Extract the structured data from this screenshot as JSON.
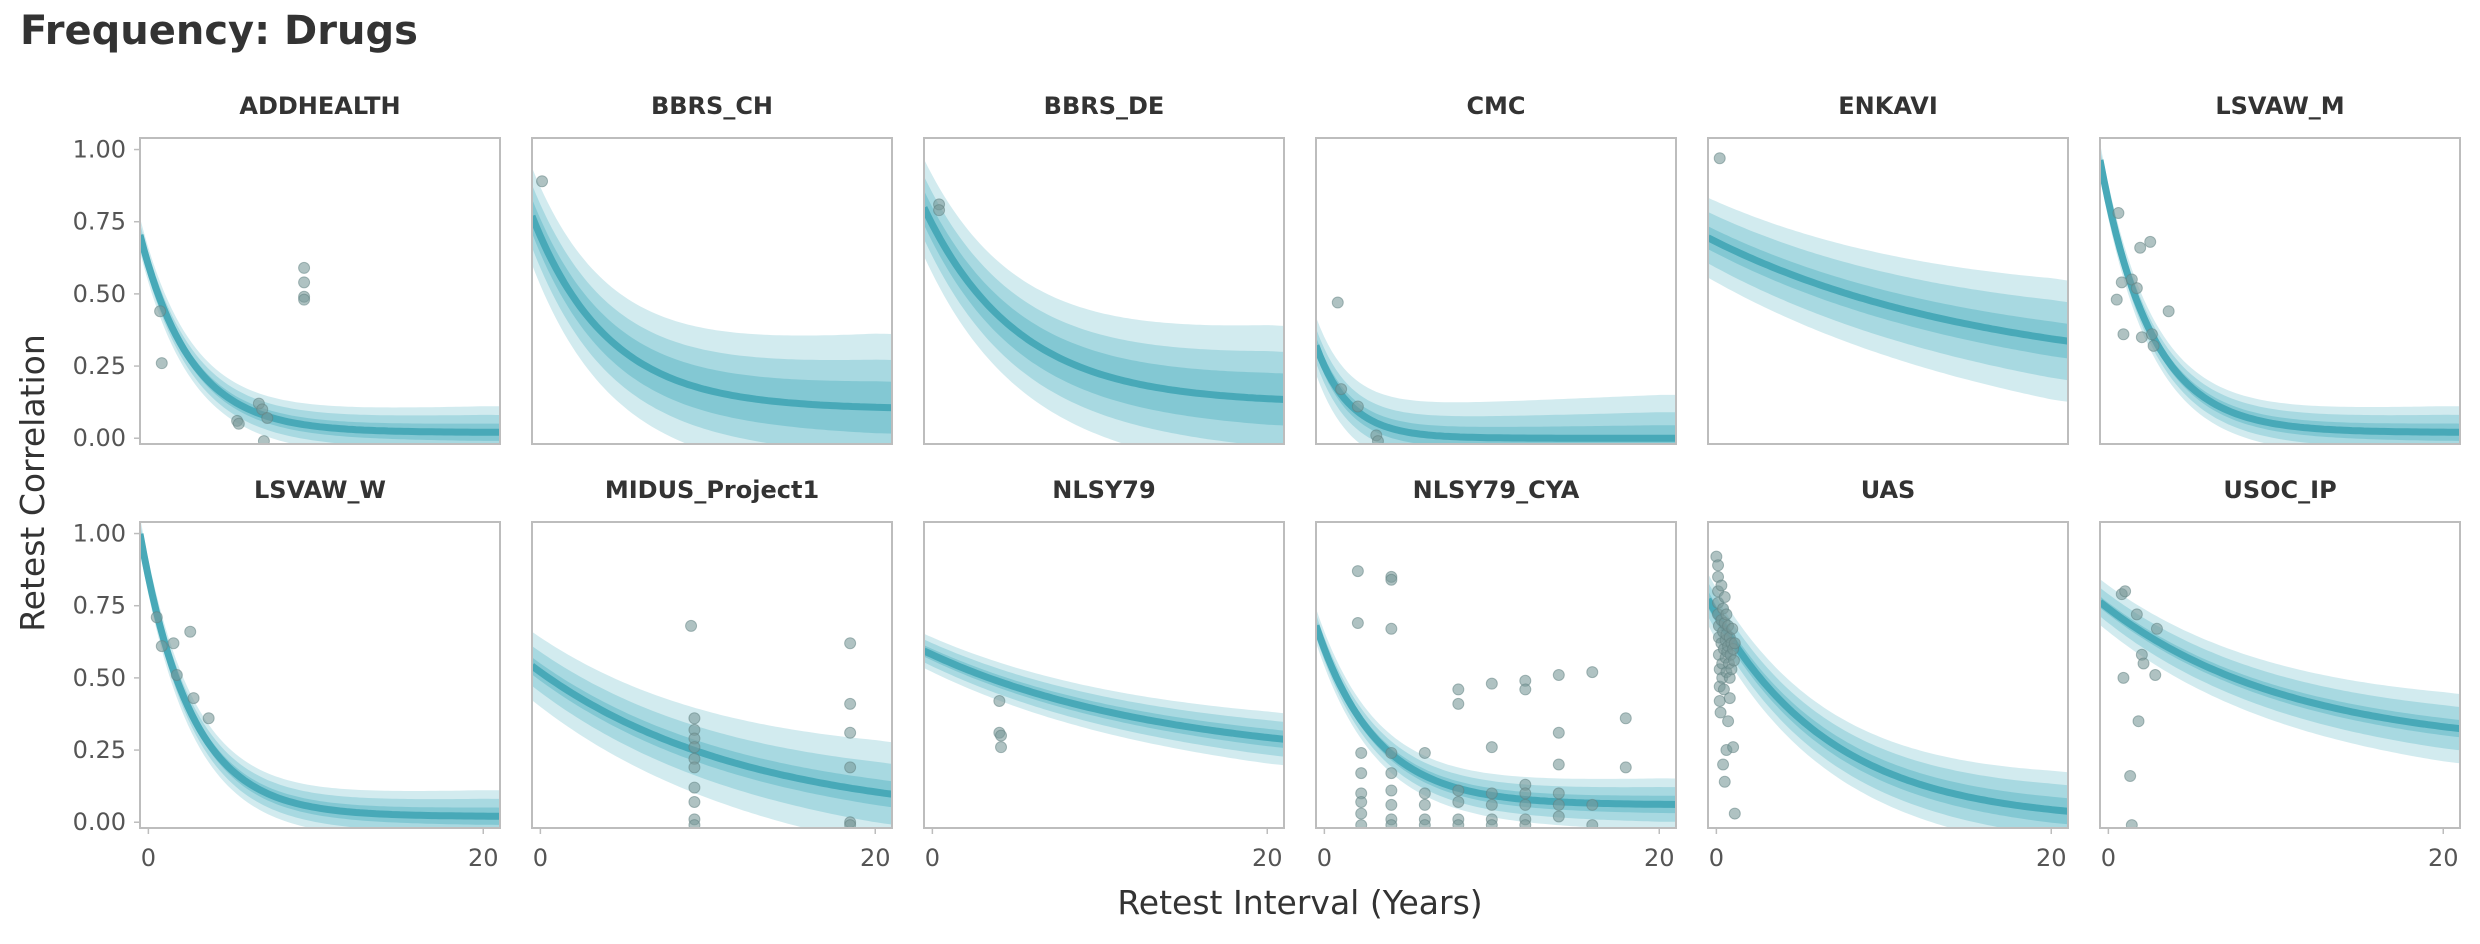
{
  "title": "Frequency: Drugs",
  "colors": {
    "band": "#4aafbf",
    "line": "#48a9b8",
    "point": "#7a9a9a",
    "frame": "#bdbdbd"
  },
  "chart_data": {
    "type": "scatter",
    "layout": "facet-grid 2 rows x 6 columns",
    "xlabel": "Retest Interval (Years)",
    "ylabel": "Retest Correlation",
    "xlim": [
      -0.5,
      21
    ],
    "ylim": [
      -0.02,
      1.04
    ],
    "x_ticks": [
      0,
      20
    ],
    "x_tick_labels": [
      "0",
      "20"
    ],
    "y_ticks": [
      0,
      0.25,
      0.5,
      0.75,
      1.0
    ],
    "y_tick_labels": [
      "0.00",
      "0.25",
      "0.50",
      "0.75",
      "1.00"
    ],
    "grid": false,
    "series_note": "points = observed retest correlations; curve = fitted decay with nested credible bands",
    "panels": [
      {
        "name": "ADDHEALTH",
        "fit": {
          "y0": 0.6,
          "floor": 0.02,
          "rate": 0.33,
          "spread": [
            0.02,
            0.04,
            0.06
          ]
        },
        "points": [
          [
            0.7,
            0.44
          ],
          [
            0.8,
            0.26
          ],
          [
            5.3,
            0.06
          ],
          [
            5.4,
            0.05
          ],
          [
            6.6,
            0.12
          ],
          [
            6.8,
            0.1
          ],
          [
            6.9,
            -0.01
          ],
          [
            7.1,
            0.07
          ],
          [
            9.3,
            0.59
          ],
          [
            9.3,
            0.54
          ],
          [
            9.3,
            0.49
          ],
          [
            9.3,
            0.48
          ]
        ]
      },
      {
        "name": "BBRS_CH",
        "fit": {
          "y0": 0.7,
          "floor": 0.1,
          "rate": 0.22,
          "spread": [
            0.06,
            0.11,
            0.17
          ]
        },
        "points": [
          [
            0.1,
            0.89
          ]
        ]
      },
      {
        "name": "BBRS_DE",
        "fit": {
          "y0": 0.74,
          "floor": 0.12,
          "rate": 0.18,
          "spread": [
            0.06,
            0.11,
            0.17
          ]
        },
        "points": [
          [
            0.4,
            0.81
          ],
          [
            0.4,
            0.79
          ]
        ]
      },
      {
        "name": "CMC",
        "fit": {
          "y0": 0.25,
          "floor": 0.0,
          "rate": 0.5,
          "spread": [
            0.03,
            0.06,
            0.1
          ]
        },
        "points": [
          [
            0.8,
            0.47
          ],
          [
            1.0,
            0.17
          ],
          [
            2.0,
            0.11
          ],
          [
            3.1,
            0.01
          ],
          [
            3.2,
            -0.01
          ]
        ]
      },
      {
        "name": "ENKAVI",
        "fit": {
          "y0": 0.68,
          "floor": 0.2,
          "rate": 0.06,
          "spread": [
            0.04,
            0.09,
            0.14
          ]
        },
        "points": [
          [
            0.2,
            0.97
          ]
        ]
      },
      {
        "name": "LSVAW_M",
        "fit": {
          "y0": 0.82,
          "floor": 0.02,
          "rate": 0.33,
          "spread": [
            0.02,
            0.04,
            0.06
          ]
        },
        "points": [
          [
            0.5,
            0.48
          ],
          [
            0.6,
            0.78
          ],
          [
            0.8,
            0.54
          ],
          [
            0.9,
            0.36
          ],
          [
            1.4,
            0.55
          ],
          [
            1.7,
            0.52
          ],
          [
            1.9,
            0.66
          ],
          [
            2.0,
            0.35
          ],
          [
            2.5,
            0.68
          ],
          [
            2.6,
            0.36
          ],
          [
            2.7,
            0.32
          ],
          [
            3.6,
            0.44
          ]
        ]
      },
      {
        "name": "LSVAW_W",
        "fit": {
          "y0": 0.85,
          "floor": 0.02,
          "rate": 0.33,
          "spread": [
            0.02,
            0.04,
            0.06
          ]
        },
        "points": [
          [
            0.5,
            0.71
          ],
          [
            0.8,
            0.61
          ],
          [
            1.5,
            0.62
          ],
          [
            1.7,
            0.51
          ],
          [
            2.5,
            0.66
          ],
          [
            2.7,
            0.43
          ],
          [
            3.6,
            0.36
          ]
        ]
      },
      {
        "name": "MIDUS_Project1",
        "fit": {
          "y0": 0.52,
          "floor": 0.0,
          "rate": 0.08,
          "spread": [
            0.03,
            0.07,
            0.12
          ]
        },
        "points": [
          [
            9.0,
            0.68
          ],
          [
            9.2,
            0.36
          ],
          [
            9.2,
            0.32
          ],
          [
            9.2,
            0.29
          ],
          [
            9.2,
            0.26
          ],
          [
            9.2,
            0.22
          ],
          [
            9.2,
            0.19
          ],
          [
            9.2,
            0.12
          ],
          [
            9.2,
            0.07
          ],
          [
            9.2,
            0.01
          ],
          [
            9.2,
            -0.01
          ],
          [
            18.5,
            0.62
          ],
          [
            18.5,
            0.41
          ],
          [
            18.5,
            0.31
          ],
          [
            18.5,
            0.19
          ],
          [
            18.5,
            0.0
          ],
          [
            18.5,
            -0.01
          ]
        ]
      },
      {
        "name": "NLSY79",
        "fit": {
          "y0": 0.58,
          "floor": 0.2,
          "rate": 0.07,
          "spread": [
            0.02,
            0.04,
            0.06
          ]
        },
        "points": [
          [
            4.0,
            0.42
          ],
          [
            4.0,
            0.31
          ],
          [
            4.1,
            0.3
          ],
          [
            4.1,
            0.26
          ]
        ]
      },
      {
        "name": "NLSY79_CYA",
        "fit": {
          "y0": 0.6,
          "floor": 0.06,
          "rate": 0.28,
          "spread": [
            0.02,
            0.04,
            0.06
          ]
        },
        "points": [
          [
            2.0,
            0.87
          ],
          [
            2.0,
            0.69
          ],
          [
            2.2,
            0.24
          ],
          [
            2.2,
            0.17
          ],
          [
            2.2,
            0.1
          ],
          [
            2.2,
            0.07
          ],
          [
            2.2,
            0.03
          ],
          [
            2.2,
            -0.01
          ],
          [
            4.0,
            0.85
          ],
          [
            4.0,
            0.84
          ],
          [
            4.0,
            0.67
          ],
          [
            4.0,
            0.24
          ],
          [
            4.0,
            0.17
          ],
          [
            4.0,
            0.11
          ],
          [
            4.0,
            0.06
          ],
          [
            4.0,
            0.01
          ],
          [
            4.0,
            -0.01
          ],
          [
            6.0,
            0.24
          ],
          [
            6.0,
            0.1
          ],
          [
            6.0,
            0.06
          ],
          [
            6.0,
            0.01
          ],
          [
            6.0,
            -0.01
          ],
          [
            8.0,
            0.46
          ],
          [
            8.0,
            0.41
          ],
          [
            8.0,
            0.11
          ],
          [
            8.0,
            0.07
          ],
          [
            8.0,
            0.01
          ],
          [
            8.0,
            -0.01
          ],
          [
            10.0,
            0.48
          ],
          [
            10.0,
            0.26
          ],
          [
            10.0,
            0.1
          ],
          [
            10.0,
            0.06
          ],
          [
            10.0,
            0.01
          ],
          [
            10.0,
            -0.01
          ],
          [
            12.0,
            0.49
          ],
          [
            12.0,
            0.46
          ],
          [
            12.0,
            0.13
          ],
          [
            12.0,
            0.1
          ],
          [
            12.0,
            0.06
          ],
          [
            12.0,
            0.01
          ],
          [
            12.0,
            -0.01
          ],
          [
            14.0,
            0.51
          ],
          [
            14.0,
            0.31
          ],
          [
            14.0,
            0.2
          ],
          [
            14.0,
            0.1
          ],
          [
            14.0,
            0.06
          ],
          [
            14.0,
            0.02
          ],
          [
            16.0,
            0.52
          ],
          [
            16.0,
            0.06
          ],
          [
            16.0,
            -0.01
          ],
          [
            18.0,
            0.36
          ],
          [
            18.0,
            0.19
          ]
        ]
      },
      {
        "name": "UAS",
        "fit": {
          "y0": 0.72,
          "floor": 0.0,
          "rate": 0.14,
          "spread": [
            0.03,
            0.06,
            0.09
          ]
        },
        "points": [
          [
            0.0,
            0.92
          ],
          [
            0.1,
            0.89
          ],
          [
            0.1,
            0.85
          ],
          [
            0.1,
            0.8
          ],
          [
            0.1,
            0.76
          ],
          [
            0.1,
            0.72
          ],
          [
            0.15,
            0.68
          ],
          [
            0.15,
            0.64
          ],
          [
            0.15,
            0.58
          ],
          [
            0.2,
            0.53
          ],
          [
            0.2,
            0.47
          ],
          [
            0.2,
            0.42
          ],
          [
            0.25,
            0.38
          ],
          [
            0.3,
            0.82
          ],
          [
            0.3,
            0.7
          ],
          [
            0.3,
            0.62
          ],
          [
            0.35,
            0.55
          ],
          [
            0.35,
            0.5
          ],
          [
            0.4,
            0.74
          ],
          [
            0.4,
            0.66
          ],
          [
            0.45,
            0.6
          ],
          [
            0.45,
            0.46
          ],
          [
            0.5,
            0.78
          ],
          [
            0.5,
            0.69
          ],
          [
            0.55,
            0.63
          ],
          [
            0.55,
            0.57
          ],
          [
            0.6,
            0.72
          ],
          [
            0.6,
            0.65
          ],
          [
            0.6,
            0.52
          ],
          [
            0.65,
            0.59
          ],
          [
            0.7,
            0.68
          ],
          [
            0.7,
            0.61
          ],
          [
            0.75,
            0.55
          ],
          [
            0.8,
            0.64
          ],
          [
            0.8,
            0.5
          ],
          [
            0.85,
            0.58
          ],
          [
            0.9,
            0.62
          ],
          [
            0.9,
            0.53
          ],
          [
            0.95,
            0.67
          ],
          [
            1.0,
            0.6
          ],
          [
            1.05,
            0.56
          ],
          [
            1.1,
            0.62
          ],
          [
            0.5,
            0.14
          ],
          [
            0.6,
            0.25
          ],
          [
            0.8,
            0.43
          ],
          [
            1.0,
            0.26
          ],
          [
            1.1,
            0.03
          ],
          [
            0.4,
            0.2
          ],
          [
            0.7,
            0.35
          ]
        ]
      },
      {
        "name": "USOC_IP",
        "fit": {
          "y0": 0.74,
          "floor": 0.25,
          "rate": 0.09,
          "spread": [
            0.02,
            0.05,
            0.08
          ]
        },
        "points": [
          [
            0.8,
            0.79
          ],
          [
            0.9,
            0.5
          ],
          [
            1.0,
            0.8
          ],
          [
            1.3,
            0.16
          ],
          [
            1.4,
            -0.01
          ],
          [
            1.7,
            0.72
          ],
          [
            1.8,
            0.35
          ],
          [
            2.0,
            0.58
          ],
          [
            2.1,
            0.55
          ],
          [
            2.8,
            0.51
          ],
          [
            2.9,
            0.67
          ]
        ]
      }
    ]
  }
}
